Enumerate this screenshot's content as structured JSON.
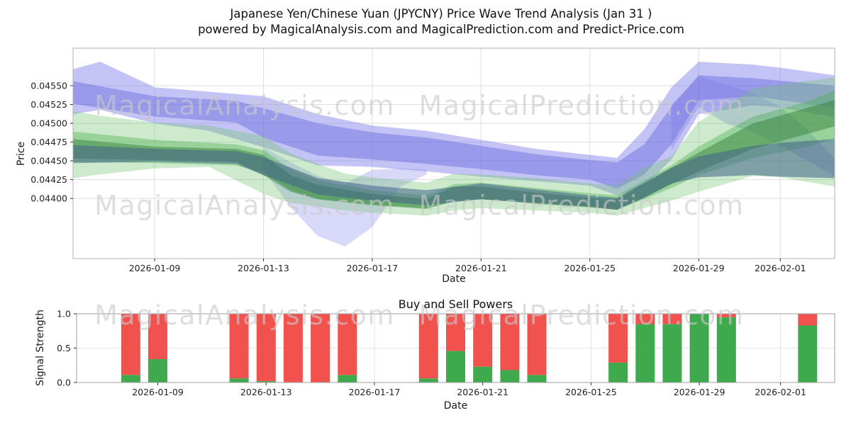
{
  "figure": {
    "title_line1": "Japanese Yen/Chinese Yuan (JPYCNY) Price Wave Trend Analysis (Jan 31 )",
    "title_line2": "powered by MagicalAnalysis.com and MagicalPrediction.com and Predict-Price.com"
  },
  "watermarks": {
    "left": "MagicalAnalysis.com",
    "right": "MagicalPrediction.com"
  },
  "chart_data": [
    {
      "type": "area",
      "name": "price_wave_trend",
      "title": "",
      "xlabel": "Date",
      "ylabel": "Price",
      "x_domain": [
        "2026-01-06",
        "2026-02-03"
      ],
      "ylim": [
        0.0432,
        0.046
      ],
      "grid": true,
      "x_ticks": [
        "2026-01-09",
        "2026-01-13",
        "2026-01-17",
        "2026-01-21",
        "2026-01-25",
        "2026-01-29",
        "2026-02-01"
      ],
      "y_ticks": [
        0.044,
        0.04425,
        0.0445,
        0.04475,
        0.045,
        0.04525,
        0.0455
      ],
      "y_tick_labels": [
        "0.04400",
        "0.04425",
        "0.04450",
        "0.04475",
        "0.04500",
        "0.04525",
        "0.04550"
      ],
      "bands": [
        {
          "name": "blue-outer",
          "color": "#7a7ae8",
          "opacity": 0.45,
          "x": [
            "2026-01-06",
            "2026-01-07",
            "2026-01-09",
            "2026-01-11",
            "2026-01-13",
            "2026-01-15",
            "2026-01-17",
            "2026-01-19",
            "2026-01-21",
            "2026-01-23",
            "2026-01-25",
            "2026-01-26",
            "2026-01-27",
            "2026-01-28",
            "2026-01-29",
            "2026-01-31",
            "2026-02-01",
            "2026-02-03"
          ],
          "upper": [
            0.04572,
            0.04582,
            0.04548,
            0.04542,
            0.04536,
            0.04512,
            0.04497,
            0.0449,
            0.04478,
            0.04466,
            0.04458,
            0.04454,
            0.04492,
            0.04548,
            0.04582,
            0.04578,
            0.04574,
            0.04564
          ],
          "lower": [
            0.04512,
            0.04518,
            0.045,
            0.0449,
            0.04468,
            0.04444,
            0.04442,
            0.04436,
            0.04429,
            0.04423,
            0.04417,
            0.04404,
            0.04416,
            0.04452,
            0.04512,
            0.04524,
            0.04521,
            0.04508
          ]
        },
        {
          "name": "blue-inner",
          "color": "#5c5cdb",
          "opacity": 0.4,
          "x": [
            "2026-01-06",
            "2026-01-09",
            "2026-01-12",
            "2026-01-13",
            "2026-01-15",
            "2026-01-17",
            "2026-01-19",
            "2026-01-21",
            "2026-01-23",
            "2026-01-25",
            "2026-01-26",
            "2026-01-27",
            "2026-01-28",
            "2026-01-29",
            "2026-01-31",
            "2026-02-03"
          ],
          "upper": [
            0.04556,
            0.04536,
            0.0453,
            0.0452,
            0.045,
            0.04488,
            0.04481,
            0.0447,
            0.04459,
            0.04451,
            0.04448,
            0.04472,
            0.04522,
            0.04564,
            0.0456,
            0.0455
          ],
          "lower": [
            0.04526,
            0.04509,
            0.04501,
            0.04481,
            0.04457,
            0.04452,
            0.04446,
            0.04439,
            0.04431,
            0.04425,
            0.04413,
            0.04432,
            0.04472,
            0.04531,
            0.04536,
            0.04521
          ]
        },
        {
          "name": "blue-dip",
          "color": "#9090ef",
          "opacity": 0.35,
          "x": [
            "2026-01-13",
            "2026-01-14",
            "2026-01-15",
            "2026-01-16",
            "2026-01-17",
            "2026-01-18",
            "2026-01-19"
          ],
          "upper": [
            0.04468,
            0.04448,
            0.0443,
            0.0442,
            0.04438,
            0.0444,
            0.04438
          ],
          "lower": [
            0.04438,
            0.04388,
            0.0435,
            0.04336,
            0.04362,
            0.04415,
            0.04432
          ]
        },
        {
          "name": "blue-right",
          "color": "#7a7ae8",
          "opacity": 0.35,
          "x": [
            "2026-01-28",
            "2026-01-29",
            "2026-01-30",
            "2026-01-31",
            "2026-02-01",
            "2026-02-02",
            "2026-02-03"
          ],
          "upper": [
            0.04525,
            0.04562,
            0.04552,
            0.0454,
            0.04522,
            0.04492,
            0.04452
          ],
          "lower": [
            0.04465,
            0.04522,
            0.045,
            0.04488,
            0.0447,
            0.0445,
            0.0443
          ]
        },
        {
          "name": "green-outer",
          "color": "#6fc26f",
          "opacity": 0.35,
          "x": [
            "2026-01-06",
            "2026-01-07",
            "2026-01-09",
            "2026-01-11",
            "2026-01-13",
            "2026-01-14",
            "2026-01-15",
            "2026-01-16",
            "2026-01-17",
            "2026-01-19",
            "2026-01-20",
            "2026-01-21",
            "2026-01-23",
            "2026-01-25",
            "2026-01-26",
            "2026-01-27",
            "2026-01-28",
            "2026-01-29",
            "2026-01-31",
            "2026-02-01",
            "2026-02-03"
          ],
          "upper": [
            0.04516,
            0.0451,
            0.04501,
            0.04497,
            0.04483,
            0.0446,
            0.04446,
            0.04433,
            0.04428,
            0.04421,
            0.04433,
            0.04432,
            0.04427,
            0.0442,
            0.04417,
            0.04441,
            0.04456,
            0.04502,
            0.04546,
            0.04552,
            0.04561
          ],
          "lower": [
            0.04427,
            0.04432,
            0.0444,
            0.04442,
            0.04406,
            0.04394,
            0.04389,
            0.04384,
            0.04381,
            0.04377,
            0.04384,
            0.04387,
            0.04384,
            0.04381,
            0.04377,
            0.04387,
            0.04397,
            0.04409,
            0.0443,
            0.04428,
            0.04416
          ]
        },
        {
          "name": "green-mid",
          "color": "#4cb050",
          "opacity": 0.4,
          "x": [
            "2026-01-06",
            "2026-01-09",
            "2026-01-12",
            "2026-01-13",
            "2026-01-14",
            "2026-01-15",
            "2026-01-17",
            "2026-01-19",
            "2026-01-20",
            "2026-01-21",
            "2026-01-23",
            "2026-01-25",
            "2026-01-26",
            "2026-01-27",
            "2026-01-28",
            "2026-01-29",
            "2026-01-31",
            "2026-02-02",
            "2026-02-03"
          ],
          "upper": [
            0.04489,
            0.04478,
            0.04472,
            0.04464,
            0.04439,
            0.04424,
            0.04411,
            0.04404,
            0.04419,
            0.04421,
            0.04414,
            0.04407,
            0.04404,
            0.04424,
            0.04444,
            0.04469,
            0.04509,
            0.04529,
            0.04544
          ],
          "lower": [
            0.04449,
            0.04447,
            0.04444,
            0.04434,
            0.04411,
            0.04399,
            0.04392,
            0.04387,
            0.04397,
            0.04399,
            0.04394,
            0.04389,
            0.04385,
            0.04399,
            0.04414,
            0.04431,
            0.04454,
            0.04469,
            0.04479
          ]
        },
        {
          "name": "green-core",
          "color": "#2f7d33",
          "opacity": 0.45,
          "x": [
            "2026-01-06",
            "2026-01-09",
            "2026-01-12",
            "2026-01-13",
            "2026-01-14",
            "2026-01-15",
            "2026-01-17",
            "2026-01-19",
            "2026-01-20",
            "2026-01-21",
            "2026-01-23",
            "2026-01-25",
            "2026-01-26",
            "2026-01-27",
            "2026-01-28",
            "2026-01-29",
            "2026-01-31",
            "2026-02-03"
          ],
          "upper": [
            0.04479,
            0.04469,
            0.04466,
            0.04458,
            0.04431,
            0.04418,
            0.04406,
            0.04399,
            0.04416,
            0.04416,
            0.04408,
            0.04401,
            0.04399,
            0.04419,
            0.04441,
            0.04461,
            0.045,
            0.04531
          ],
          "lower": [
            0.04453,
            0.04451,
            0.04449,
            0.04431,
            0.04409,
            0.04399,
            0.04391,
            0.04386,
            0.04396,
            0.04399,
            0.04393,
            0.04388,
            0.04385,
            0.04401,
            0.04419,
            0.04436,
            0.04466,
            0.04496
          ]
        },
        {
          "name": "slate-core",
          "color": "#41628a",
          "opacity": 0.55,
          "x": [
            "2026-01-06",
            "2026-01-09",
            "2026-01-12",
            "2026-01-13",
            "2026-01-15",
            "2026-01-17",
            "2026-01-19",
            "2026-01-21",
            "2026-01-23",
            "2026-01-25",
            "2026-01-26",
            "2026-01-27",
            "2026-01-28",
            "2026-01-29",
            "2026-01-31",
            "2026-02-01",
            "2026-02-03"
          ],
          "upper": [
            0.04471,
            0.04466,
            0.04463,
            0.04455,
            0.04427,
            0.04417,
            0.04411,
            0.0442,
            0.04412,
            0.04404,
            0.04401,
            0.04421,
            0.04441,
            0.04456,
            0.0447,
            0.04474,
            0.04479
          ],
          "lower": [
            0.04447,
            0.04449,
            0.04446,
            0.04431,
            0.04405,
            0.04397,
            0.04391,
            0.04399,
            0.04394,
            0.04389,
            0.04385,
            0.04401,
            0.0442,
            0.04428,
            0.04431,
            0.04429,
            0.04427
          ]
        }
      ]
    },
    {
      "type": "bar",
      "name": "buy_sell_powers",
      "title": "Buy and Sell Powers",
      "xlabel": "Date",
      "ylabel": "Signal Strength",
      "x_domain": [
        "2026-01-06",
        "2026-02-03"
      ],
      "ylim": [
        0,
        1.0
      ],
      "grid": true,
      "x_ticks": [
        "2026-01-09",
        "2026-01-13",
        "2026-01-17",
        "2026-01-21",
        "2026-01-25",
        "2026-01-29",
        "2026-02-01"
      ],
      "y_ticks": [
        0.0,
        0.5,
        1.0
      ],
      "y_tick_labels": [
        "0.0",
        "0.5",
        "1.0"
      ],
      "bar_total": 1.0,
      "dates": [
        "2026-01-08",
        "2026-01-09",
        "2026-01-12",
        "2026-01-13",
        "2026-01-14",
        "2026-01-15",
        "2026-01-16",
        "2026-01-19",
        "2026-01-20",
        "2026-01-21",
        "2026-01-22",
        "2026-01-23",
        "2026-01-26",
        "2026-01-27",
        "2026-01-28",
        "2026-01-29",
        "2026-01-30",
        "2026-02-02"
      ],
      "series": [
        {
          "name": "Buy",
          "color": "#3fa94d",
          "values": [
            0.11,
            0.34,
            0.06,
            0.02,
            0.0,
            0.0,
            0.11,
            0.06,
            0.46,
            0.23,
            0.18,
            0.11,
            0.29,
            0.85,
            0.85,
            1.0,
            0.95,
            0.83
          ]
        },
        {
          "name": "Sell",
          "color": "#f2524e",
          "values": [
            0.89,
            0.66,
            0.94,
            0.98,
            1.0,
            1.0,
            0.89,
            0.94,
            0.54,
            0.77,
            0.82,
            0.89,
            0.71,
            0.15,
            0.15,
            0.0,
            0.05,
            0.17
          ]
        }
      ]
    }
  ]
}
